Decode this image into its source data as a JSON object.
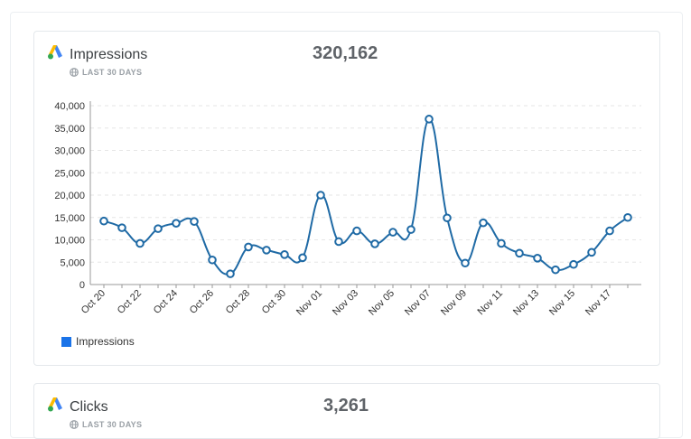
{
  "cards": [
    {
      "title": "Impressions",
      "period": "LAST 30 DAYS",
      "metric_value": "320,162",
      "icon": "google-ads-logo-icon"
    },
    {
      "title": "Clicks",
      "period": "LAST 30 DAYS",
      "metric_value": "3,261",
      "icon": "google-ads-logo-icon"
    }
  ],
  "colors": {
    "line": "#1f6aa5",
    "legend": "#1a73e8",
    "grid": "#e6e6e6"
  },
  "chart_data": {
    "type": "line",
    "title": "",
    "xlabel": "",
    "ylabel": "",
    "ylim": [
      0,
      40000
    ],
    "y_ticks": [
      "0",
      "5,000",
      "10,000",
      "15,000",
      "20,000",
      "25,000",
      "30,000",
      "35,000",
      "40,000"
    ],
    "x_tick_labels": [
      "Oct 20",
      "Oct 22",
      "Oct 24",
      "Oct 26",
      "Oct 28",
      "Oct 30",
      "Nov 01",
      "Nov 03",
      "Nov 05",
      "Nov 07",
      "Nov 09",
      "Nov 11",
      "Nov 13",
      "Nov 15",
      "Nov 17"
    ],
    "legend": "bottom-left",
    "grid": true,
    "x": [
      "Oct 20",
      "Oct 21",
      "Oct 22",
      "Oct 23",
      "Oct 24",
      "Oct 25",
      "Oct 26",
      "Oct 27",
      "Oct 28",
      "Oct 29",
      "Oct 30",
      "Oct 31",
      "Nov 01",
      "Nov 02",
      "Nov 03",
      "Nov 04",
      "Nov 05",
      "Nov 06",
      "Nov 07",
      "Nov 08",
      "Nov 09",
      "Nov 10",
      "Nov 11",
      "Nov 12",
      "Nov 13",
      "Nov 14",
      "Nov 15",
      "Nov 16",
      "Nov 17",
      "Nov 18"
    ],
    "series": [
      {
        "name": "Impressions",
        "values": [
          14200,
          12700,
          9200,
          12500,
          13700,
          14100,
          5500,
          2400,
          8400,
          7700,
          6700,
          6000,
          20000,
          9600,
          12000,
          9100,
          11700,
          12300,
          37000,
          14900,
          4800,
          13800,
          9200,
          7000,
          5900,
          3300,
          4500,
          7200,
          12000,
          15000
        ]
      }
    ]
  }
}
